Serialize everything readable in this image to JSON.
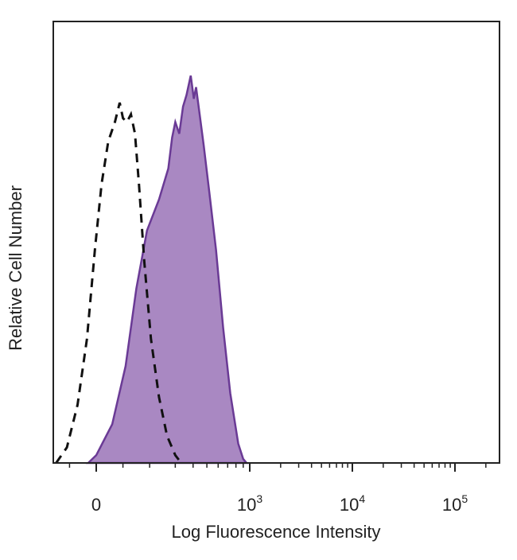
{
  "chart_data": {
    "type": "area",
    "xlabel": "Log Fluorescence Intensity",
    "ylabel": "Relative Cell Number",
    "x_scale": "biexponential",
    "xticks": [
      {
        "value": 0,
        "base": "0",
        "exp": ""
      },
      {
        "value": 1000,
        "base": "10",
        "exp": "3"
      },
      {
        "value": 10000,
        "base": "10",
        "exp": "4"
      },
      {
        "value": 100000,
        "base": "10",
        "exp": "5"
      }
    ],
    "xlim": [
      -300,
      262144
    ],
    "ylim": [
      0,
      100
    ],
    "grid": false,
    "legend": "none",
    "series": [
      {
        "style": "filled",
        "fill": "#a988c2",
        "stroke": "#6a3a95",
        "points": [
          [
            -30,
            0
          ],
          [
            0,
            2
          ],
          [
            60,
            10
          ],
          [
            110,
            25
          ],
          [
            150,
            45
          ],
          [
            190,
            60
          ],
          [
            235,
            68
          ],
          [
            270,
            76
          ],
          [
            285,
            84
          ],
          [
            300,
            88
          ],
          [
            320,
            85
          ],
          [
            340,
            92
          ],
          [
            360,
            95
          ],
          [
            385,
            100
          ],
          [
            405,
            94
          ],
          [
            420,
            97
          ],
          [
            445,
            90
          ],
          [
            475,
            82
          ],
          [
            520,
            70
          ],
          [
            580,
            55
          ],
          [
            650,
            35
          ],
          [
            730,
            18
          ],
          [
            830,
            5
          ],
          [
            900,
            1
          ],
          [
            950,
            0
          ]
        ]
      },
      {
        "style": "dashed",
        "stroke": "#111111",
        "points": [
          [
            -150,
            0
          ],
          [
            -110,
            4
          ],
          [
            -70,
            15
          ],
          [
            -35,
            32
          ],
          [
            -5,
            55
          ],
          [
            20,
            72
          ],
          [
            45,
            83
          ],
          [
            70,
            88
          ],
          [
            88,
            93
          ],
          [
            100,
            89
          ],
          [
            115,
            88
          ],
          [
            130,
            90
          ],
          [
            145,
            85
          ],
          [
            160,
            72
          ],
          [
            180,
            52
          ],
          [
            205,
            32
          ],
          [
            235,
            17
          ],
          [
            265,
            7
          ],
          [
            300,
            2
          ],
          [
            330,
            0
          ]
        ]
      }
    ]
  }
}
